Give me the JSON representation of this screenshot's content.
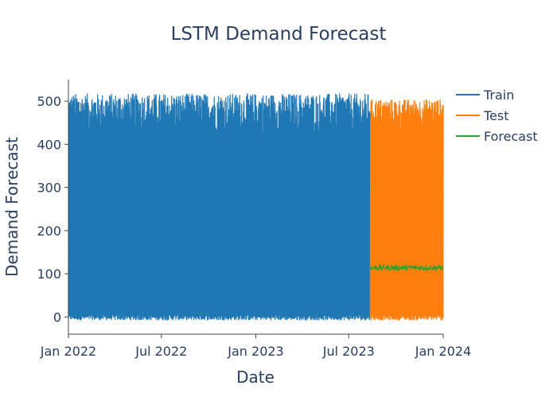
{
  "chart_data": {
    "type": "line",
    "title": "LSTM Demand Forecast",
    "xlabel": "Date",
    "ylabel": "Demand Forecast",
    "xlim": [
      "2022-01-01",
      "2024-01-01"
    ],
    "ylim": [
      -40,
      550
    ],
    "x_ticks": [
      {
        "date": "2022-01-01",
        "label": "Jan 2022"
      },
      {
        "date": "2022-07-01",
        "label": "Jul 2022"
      },
      {
        "date": "2023-01-01",
        "label": "Jan 2023"
      },
      {
        "date": "2023-07-01",
        "label": "Jul 2023"
      },
      {
        "date": "2024-01-01",
        "label": "Jan 2024"
      }
    ],
    "y_ticks": [
      0,
      100,
      200,
      300,
      400,
      500
    ],
    "legend_position": "top-right",
    "series": [
      {
        "name": "Train",
        "color": "#1f77b4",
        "x_start": "2022-01-01",
        "x_end": "2023-08-12",
        "frequency": "hourly",
        "value_range": [
          -8,
          518
        ],
        "peak_band": [
          415,
          518
        ],
        "trough_band": [
          -8,
          5
        ]
      },
      {
        "name": "Test",
        "color": "#ff7f0e",
        "x_start": "2023-08-12",
        "x_end": "2024-01-01",
        "frequency": "hourly",
        "value_range": [
          -8,
          505
        ],
        "peak_band": [
          430,
          505
        ],
        "trough_band": [
          -8,
          5
        ]
      },
      {
        "name": "Forecast",
        "color": "#2ca02c",
        "x_start": "2023-08-12",
        "x_end": "2024-01-01",
        "frequency": "hourly",
        "value_range": [
          108,
          120
        ],
        "mean": 114
      }
    ]
  }
}
